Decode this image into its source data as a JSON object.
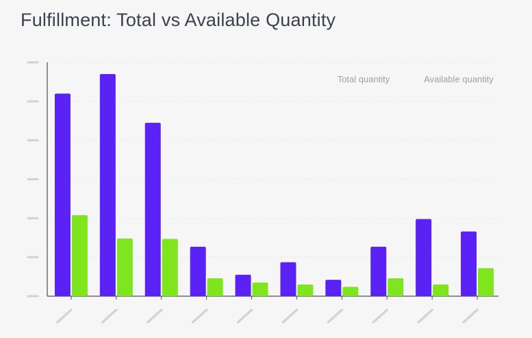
{
  "chart_data": {
    "type": "bar",
    "title": "Fulfillment: Total vs Available Quantity",
    "categories": [
      "",
      "",
      "",
      "",
      "",
      "",
      "",
      "",
      "",
      ""
    ],
    "series": [
      {
        "name": "Total quantity",
        "color": "#5a22f5",
        "values": [
          5.2,
          5.7,
          4.45,
          1.27,
          0.55,
          0.87,
          0.42,
          1.27,
          1.98,
          1.66
        ]
      },
      {
        "name": "Available quantity",
        "color": "#7fe51f",
        "values": [
          2.08,
          1.48,
          1.47,
          0.46,
          0.35,
          0.3,
          0.24,
          0.46,
          0.3,
          0.72
        ]
      }
    ],
    "ylim": [
      0,
      6
    ],
    "grid": true,
    "legend": "top-right",
    "xlabel": "",
    "ylabel": ""
  }
}
